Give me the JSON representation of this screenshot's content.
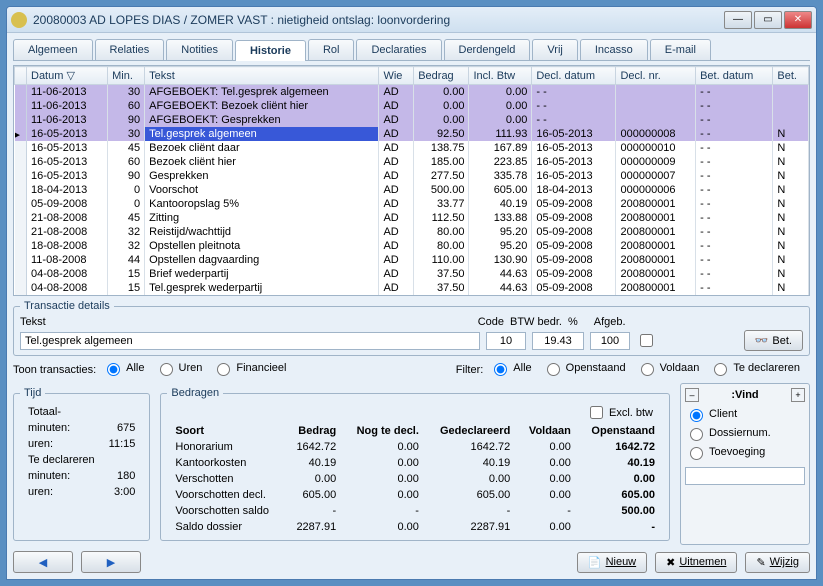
{
  "title": "20080003  AD    LOPES DIAS / ZOMER VAST : nietigheid ontslag: loonvordering",
  "tabs": [
    "Algemeen",
    "Relaties",
    "Notities",
    "Historie",
    "Rol",
    "Declaraties",
    "Derdengeld",
    "Vrij",
    "Incasso",
    "E-mail"
  ],
  "activeTab": 3,
  "columns": [
    "Datum ▽",
    "Min.",
    "Tekst",
    "Wie",
    "Bedrag",
    "Incl. Btw",
    "Decl. datum",
    "Decl. nr.",
    "Bet. datum",
    "Bet."
  ],
  "rows": [
    {
      "hl": true,
      "c": [
        "11-06-2013",
        "30",
        "AFGEBOEKT: Tel.gesprek algemeen",
        "AD",
        "0.00",
        "0.00",
        "- -",
        "",
        "- -",
        ""
      ]
    },
    {
      "hl": true,
      "c": [
        "11-06-2013",
        "60",
        "AFGEBOEKT: Bezoek cliënt hier",
        "AD",
        "0.00",
        "0.00",
        "- -",
        "",
        "- -",
        ""
      ]
    },
    {
      "hl": true,
      "c": [
        "11-06-2013",
        "90",
        "AFGEBOEKT: Gesprekken",
        "AD",
        "0.00",
        "0.00",
        "- -",
        "",
        "- -",
        ""
      ]
    },
    {
      "sel": true,
      "c": [
        "16-05-2013",
        "30",
        "Tel.gesprek algemeen",
        "AD",
        "92.50",
        "111.93",
        "16-05-2013",
        "000000008",
        "- -",
        "N"
      ]
    },
    {
      "c": [
        "16-05-2013",
        "45",
        "Bezoek cliënt daar",
        "AD",
        "138.75",
        "167.89",
        "16-05-2013",
        "000000010",
        "- -",
        "N"
      ]
    },
    {
      "c": [
        "16-05-2013",
        "60",
        "Bezoek cliënt hier",
        "AD",
        "185.00",
        "223.85",
        "16-05-2013",
        "000000009",
        "- -",
        "N"
      ]
    },
    {
      "c": [
        "16-05-2013",
        "90",
        "Gesprekken",
        "AD",
        "277.50",
        "335.78",
        "16-05-2013",
        "000000007",
        "- -",
        "N"
      ]
    },
    {
      "c": [
        "18-04-2013",
        "0",
        "Voorschot",
        "AD",
        "500.00",
        "605.00",
        "18-04-2013",
        "000000006",
        "- -",
        "N"
      ]
    },
    {
      "c": [
        "05-09-2008",
        "0",
        "Kantooropslag 5%",
        "AD",
        "33.77",
        "40.19",
        "05-09-2008",
        "200800001",
        "- -",
        "N"
      ]
    },
    {
      "c": [
        "21-08-2008",
        "45",
        "Zitting",
        "AD",
        "112.50",
        "133.88",
        "05-09-2008",
        "200800001",
        "- -",
        "N"
      ]
    },
    {
      "c": [
        "21-08-2008",
        "32",
        "Reistijd/wachttijd",
        "AD",
        "80.00",
        "95.20",
        "05-09-2008",
        "200800001",
        "- -",
        "N"
      ]
    },
    {
      "c": [
        "18-08-2008",
        "32",
        "Opstellen pleitnota",
        "AD",
        "80.00",
        "95.20",
        "05-09-2008",
        "200800001",
        "- -",
        "N"
      ]
    },
    {
      "c": [
        "11-08-2008",
        "44",
        "Opstellen dagvaarding",
        "AD",
        "110.00",
        "130.90",
        "05-09-2008",
        "200800001",
        "- -",
        "N"
      ]
    },
    {
      "c": [
        "04-08-2008",
        "15",
        "Brief wederpartij",
        "AD",
        "37.50",
        "44.63",
        "05-09-2008",
        "200800001",
        "- -",
        "N"
      ]
    },
    {
      "c": [
        "04-08-2008",
        "15",
        "Tel.gesprek wederpartij",
        "AD",
        "37.50",
        "44.63",
        "05-09-2008",
        "200800001",
        "- -",
        "N"
      ]
    }
  ],
  "details": {
    "legend": "Transactie details",
    "tekstLabel": "Tekst",
    "tekstValue": "Tel.gesprek algemeen",
    "codeLabel": "Code",
    "codeValue": "10",
    "btwLabel": "BTW bedr.",
    "btwValue": "19.43",
    "pctLabel": "%",
    "pctValue": "100",
    "afgebLabel": "Afgeb.",
    "betBtn": "Bet."
  },
  "filters": {
    "toonLabel": "Toon transacties:",
    "toonOptions": [
      "Alle",
      "Uren",
      "Financieel"
    ],
    "filterLabel": "Filter:",
    "filterOptions": [
      "Alle",
      "Openstaand",
      "Voldaan",
      "Te declareren"
    ]
  },
  "tijd": {
    "legend": "Tijd",
    "rows": [
      [
        "Totaal-",
        ""
      ],
      [
        "minuten:",
        "675"
      ],
      [
        "uren:",
        "11:15"
      ],
      [
        "Te declareren",
        ""
      ],
      [
        "minuten:",
        "180"
      ],
      [
        "uren:",
        "3:00"
      ]
    ]
  },
  "bedragen": {
    "legend": "Bedragen",
    "exclLabel": "Excl. btw",
    "headers": [
      "Soort",
      "Bedrag",
      "Nog te decl.",
      "Gedeclareerd",
      "Voldaan",
      "Openstaand"
    ],
    "rows": [
      [
        "Honorarium",
        "1642.72",
        "0.00",
        "1642.72",
        "0.00",
        "1642.72"
      ],
      [
        "Kantoorkosten",
        "40.19",
        "0.00",
        "40.19",
        "0.00",
        "40.19"
      ],
      [
        "Verschotten",
        "0.00",
        "0.00",
        "0.00",
        "0.00",
        "0.00"
      ],
      [
        "Voorschotten decl.",
        "605.00",
        "0.00",
        "605.00",
        "0.00",
        "605.00"
      ],
      [
        "Voorschotten saldo",
        "-",
        "-",
        "-",
        "-",
        "500.00"
      ],
      [
        "Saldo dossier",
        "2287.91",
        "0.00",
        "2287.91",
        "0.00",
        "-"
      ]
    ]
  },
  "vind": {
    "label": ":Vind",
    "options": [
      "Client",
      "Dossiernum.",
      "Toevoeging"
    ]
  },
  "footer": {
    "nieuw": "Nieuw",
    "uitnemen": "Uitnemen",
    "wijzig": "Wijzig"
  }
}
